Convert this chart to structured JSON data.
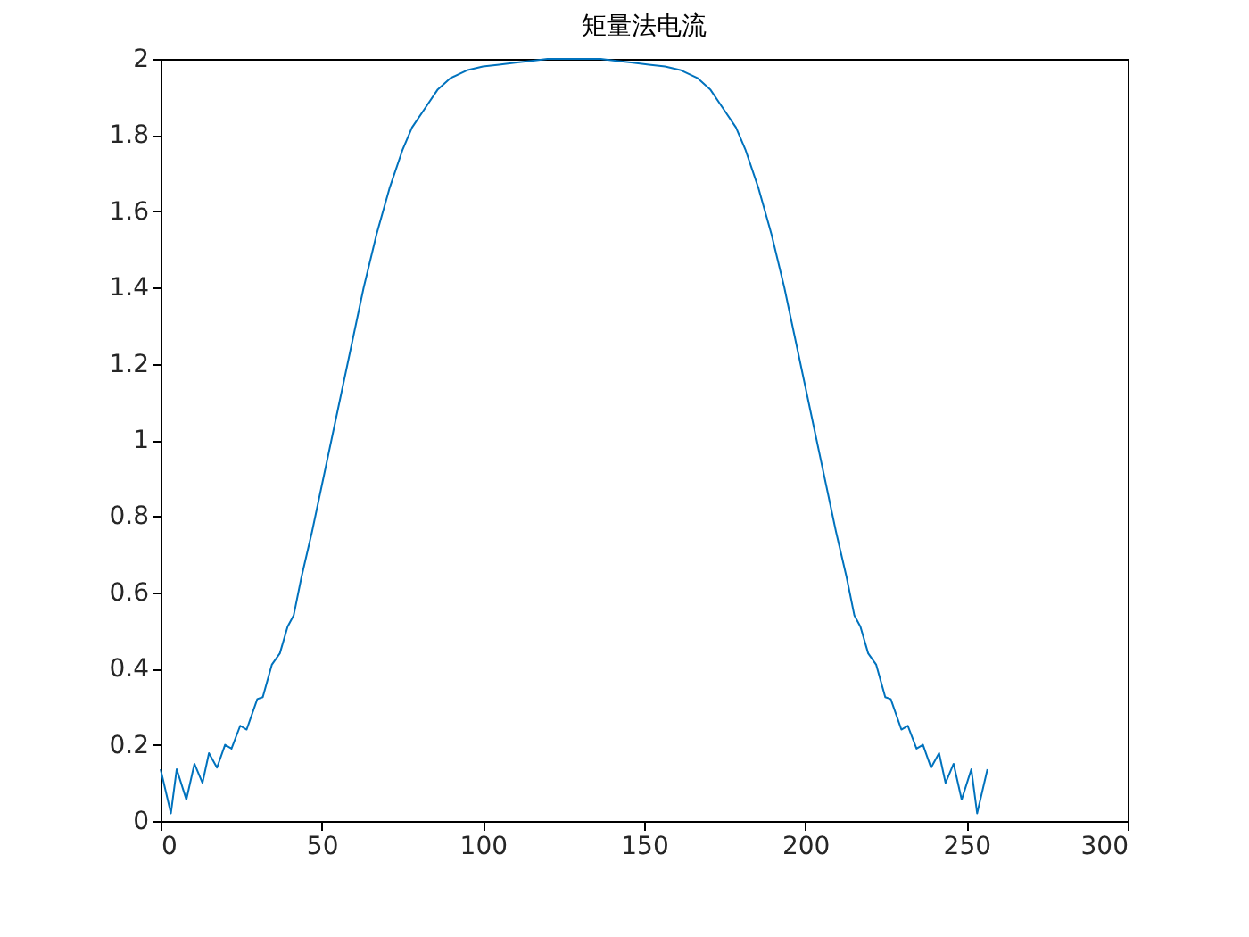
{
  "chart_data": {
    "type": "line",
    "title": "矩量法电流",
    "x": [
      0,
      3.2,
      5,
      8,
      10.5,
      13,
      15,
      17.5,
      20,
      22,
      24.7,
      26.7,
      30,
      31.7,
      34.5,
      37,
      39.4,
      41.3,
      43.7,
      47,
      50,
      53,
      56,
      60,
      63,
      67,
      71,
      75,
      78,
      82,
      86,
      90,
      95,
      100,
      105,
      110,
      115,
      120,
      128,
      136.5,
      141.5,
      146.5,
      151.5,
      156.5,
      161.5,
      166.5,
      170.5,
      174.5,
      178.5,
      181.5,
      185.5,
      189.5,
      193.5,
      196.5,
      200.5,
      203.5,
      206.5,
      209.5,
      212.8,
      215.2,
      217.1,
      219.5,
      222,
      224.8,
      226.5,
      229.8,
      231.8,
      234.5,
      236.5,
      239,
      241.5,
      243.5,
      246,
      248.5,
      251.5,
      253.3,
      256.5
    ],
    "series": [
      {
        "color": "#0072bd",
        "values": [
          0.136,
          0.02,
          0.136,
          0.056,
          0.15,
          0.1,
          0.178,
          0.14,
          0.2,
          0.19,
          0.25,
          0.24,
          0.32,
          0.325,
          0.41,
          0.44,
          0.51,
          0.54,
          0.64,
          0.76,
          0.88,
          1.0,
          1.12,
          1.28,
          1.4,
          1.54,
          1.66,
          1.76,
          1.82,
          1.87,
          1.92,
          1.95,
          1.97,
          1.98,
          1.985,
          1.99,
          1.995,
          2.0,
          2.0,
          2.0,
          1.995,
          1.99,
          1.985,
          1.98,
          1.97,
          1.95,
          1.92,
          1.87,
          1.82,
          1.76,
          1.66,
          1.54,
          1.4,
          1.28,
          1.12,
          1.0,
          0.88,
          0.76,
          0.64,
          0.54,
          0.51,
          0.44,
          0.41,
          0.325,
          0.32,
          0.24,
          0.25,
          0.19,
          0.2,
          0.14,
          0.178,
          0.1,
          0.15,
          0.056,
          0.136,
          0.02,
          0.136
        ]
      }
    ],
    "xlim": [
      0,
      300
    ],
    "xticks": [
      0,
      50,
      100,
      150,
      200,
      250,
      300
    ],
    "ylim": [
      0,
      2
    ],
    "yticks": [
      0,
      0.2,
      0.4,
      0.6,
      0.8,
      1,
      1.2,
      1.4,
      1.6,
      1.8,
      2
    ],
    "grid": false,
    "marker": "none",
    "line_style": "solid"
  }
}
